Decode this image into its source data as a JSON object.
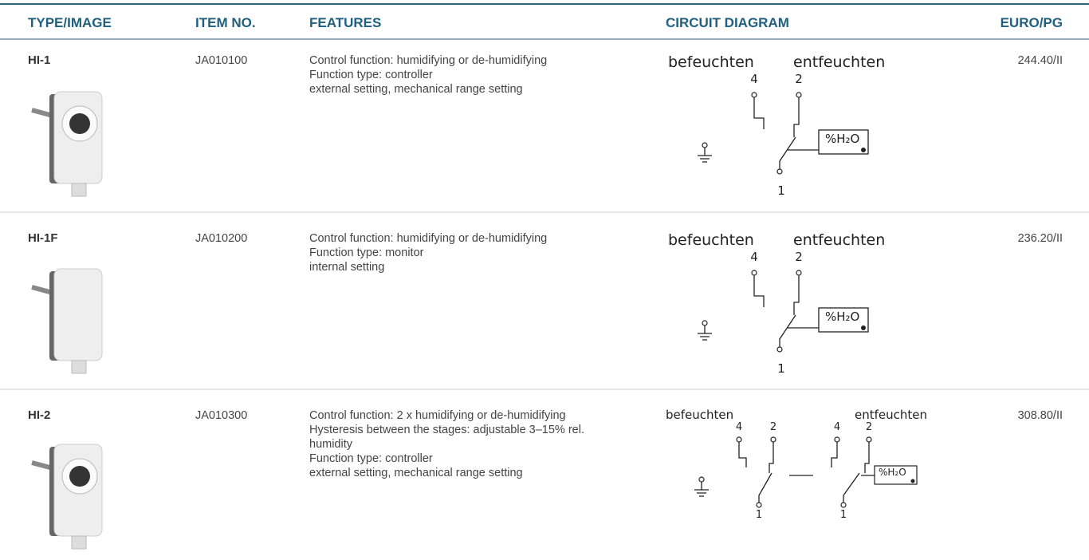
{
  "header": {
    "columns": [
      "TYPE/IMAGE",
      "ITEM NO.",
      "FEATURES",
      "CIRCUIT DIAGRAM",
      "EURO/PG"
    ]
  },
  "rows": [
    {
      "type": "HI-1",
      "item_no": "JA010100",
      "features": [
        "Control function: humidifying or de-humidifying",
        "Function type: controller",
        "external setting, mechanical range setting"
      ],
      "diagram": {
        "left_label": "befeuchten",
        "right_label": "entfeuchten",
        "terminals": [
          "4",
          "2",
          "1"
        ],
        "sensor": "%H₂O"
      },
      "price": "244.40/II"
    },
    {
      "type": "HI-1F",
      "item_no": "JA010200",
      "features": [
        "Control function: humidifying or de-humidifying",
        "Function type: monitor",
        "internal setting"
      ],
      "diagram": {
        "left_label": "befeuchten",
        "right_label": "entfeuchten",
        "terminals": [
          "4",
          "2",
          "1"
        ],
        "sensor": "%H₂O"
      },
      "price": "236.20/II"
    },
    {
      "type": "HI-2",
      "item_no": "JA010300",
      "features": [
        "Control function: 2 x humidifying or de-humidifying",
        "Hysteresis between the stages: adjustable 3–15% rel.",
        "humidity",
        "Function type: controller",
        "external setting, mechanical range setting"
      ],
      "diagram": {
        "left_label": "befeuchten",
        "right_label": "entfeuchten",
        "terminals": [
          "4",
          "2",
          "4",
          "2",
          "1",
          "1"
        ],
        "sensor": "%H₂O"
      },
      "price": "308.80/II"
    }
  ]
}
